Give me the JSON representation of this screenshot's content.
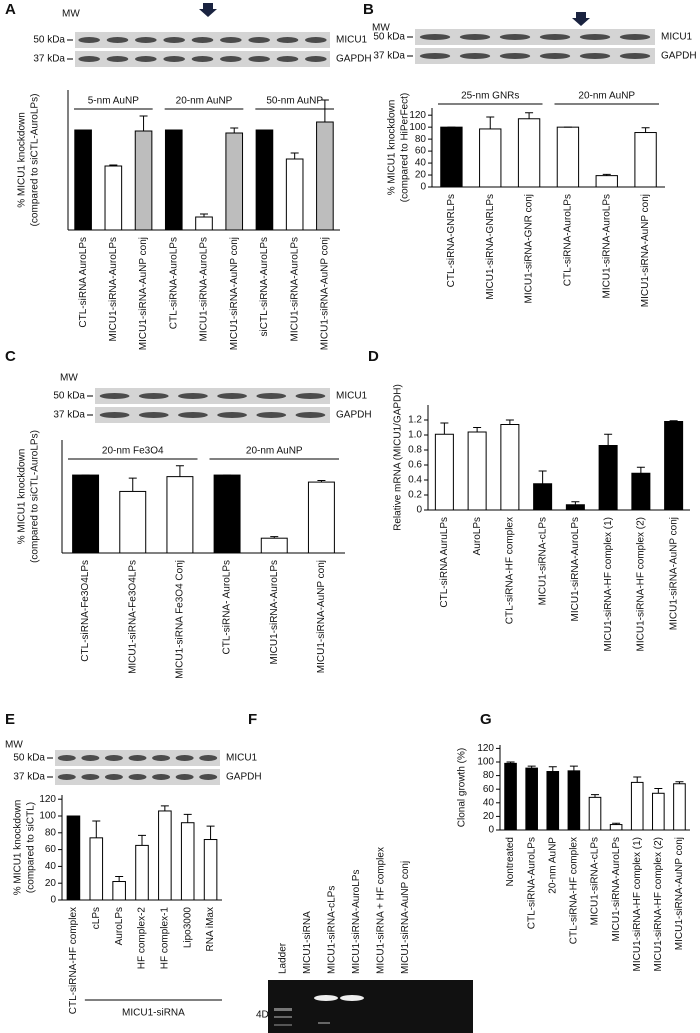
{
  "chart_data": [
    {
      "type": "bar",
      "label": "A",
      "blot": {
        "mw": "MW",
        "markers": [
          "50 kDa",
          "37 kDa"
        ],
        "bands": [
          "MICU1",
          "GAPDH"
        ]
      },
      "ylabel": [
        "% MICU1 knockdown",
        "(compared to siCTL-AuroLPs)"
      ],
      "groups": [
        "5-nm AuNP",
        "20-nm AuNP",
        "50-nm AuNP"
      ],
      "categories": [
        "CTL-siRNA AuroLPs",
        "MICU1-siRNA-AuroLPs",
        "MICU1-siRNA-AuNP conj",
        "CTL-siRNA-AuroLPs",
        "MICU1-siRNA-AuroLPs",
        "MICU1-siRNA-AuNP conj",
        "siCTL-siRNA-AuroLPs",
        "MICU1-siRNA-AuroLPs",
        "MICU1-siRNA-AuNP conj"
      ],
      "values": [
        100,
        64,
        99,
        100,
        13,
        97,
        100,
        71,
        108
      ],
      "errors": [
        0,
        1,
        15,
        0,
        3,
        5,
        0,
        6,
        22
      ],
      "colors": [
        "#000000",
        "#ffffff",
        "#bdbdbd",
        "#000000",
        "#ffffff",
        "#bdbdbd",
        "#000000",
        "#ffffff",
        "#bdbdbd"
      ],
      "ylim": [
        0,
        140
      ]
    },
    {
      "type": "bar",
      "label": "B",
      "blot": {
        "mw": "MW",
        "markers": [
          "50 kDa",
          "37 kDa"
        ],
        "bands": [
          "MICU1",
          "GAPDH"
        ]
      },
      "ylabel": [
        "% MICU1 knockdown",
        "(compared to HiPerFect)"
      ],
      "groups": [
        "25-nm GNRs",
        "20-nm AuNP"
      ],
      "categories": [
        "CTL-siRNA-GNRLPs",
        "MICU1-siRNA-GNRLPs",
        "MICU1-siRNA-GNR conj",
        "CTL-siRNA-AuroLPs",
        "MICU1-siRNA-AuroLPs",
        "MICU1-siRNA-AuNP conj"
      ],
      "values": [
        100,
        97,
        114,
        100,
        19,
        91
      ],
      "errors": [
        0,
        20,
        10,
        0,
        2,
        8
      ],
      "colors": [
        "#000000",
        "#ffffff",
        "#ffffff",
        "#ffffff",
        "#ffffff",
        "#ffffff"
      ],
      "ylim": [
        0,
        132
      ],
      "yticks": [
        0,
        20,
        40,
        60,
        80,
        100,
        120
      ]
    },
    {
      "type": "bar",
      "label": "C",
      "blot": {
        "mw": "MW",
        "markers": [
          "50 kDa",
          "37 kDa"
        ],
        "bands": [
          "MICU1",
          "GAPDH"
        ]
      },
      "ylabel": [
        "% MICU1 knockdown",
        "(compared to siCTL-AuroLPs)"
      ],
      "groups": [
        "20-nm Fe3O4",
        "20-nm AuNP"
      ],
      "categories": [
        "CTL-siRNA-Fe3O4LPs",
        "MICU1-siRNA-Fe3O4LPs",
        "MICU1-siRNA Fe3O4 Conj",
        "CTL-siRNA- AuroLPs",
        "MICU1-siRNA-AuroLPs",
        "MICU1-siRNA-AuNP conj"
      ],
      "values": [
        100,
        79,
        98,
        100,
        19,
        91
      ],
      "errors": [
        0,
        17,
        14,
        0,
        2,
        2
      ],
      "colors": [
        "#000000",
        "#ffffff",
        "#ffffff",
        "#000000",
        "#ffffff",
        "#ffffff"
      ],
      "ylim": [
        0,
        145
      ]
    },
    {
      "type": "bar",
      "label": "D",
      "ylabel": [
        "Relative mRNA (MICU1/GAPDH)"
      ],
      "categories": [
        "CTL-siRNA AuruLPs",
        "AuroLPs",
        "CTL-siRNA-HF complex",
        "MICU1-siRNA-cLPs",
        "MICU1-siRNA-AuroLPs",
        "MICU1-siRNA-HF complex (1)",
        "MICU1-siRNA-HF complex (2)",
        "MICU1-siRNA-AuNP conj"
      ],
      "values": [
        1.01,
        1.04,
        1.14,
        0.35,
        0.07,
        0.86,
        0.49,
        1.18
      ],
      "errors": [
        0.15,
        0.06,
        0.06,
        0.17,
        0.04,
        0.15,
        0.08,
        0.01
      ],
      "colors": [
        "#ffffff",
        "#ffffff",
        "#ffffff",
        "#000000",
        "#000000",
        "#000000",
        "#000000",
        "#000000"
      ],
      "ylim": [
        0,
        1.4
      ],
      "yticks": [
        0,
        0.2,
        0.4,
        0.6,
        0.8,
        {
          "value": 1,
          "label": "1.0"
        },
        1.2
      ]
    },
    {
      "type": "bar",
      "label": "E",
      "blot": {
        "mw": "MW",
        "markers": [
          "50 kDa",
          "37 kDa"
        ],
        "bands": [
          "MICU1",
          "GAPDH"
        ]
      },
      "ylabel": [
        "% MICU1 knockdown",
        "(compared to siCTL)"
      ],
      "group_label": "MICU1-siRNA",
      "categories": [
        "CTL-siRNA-HF complex",
        "cLPs",
        "AuroLPs",
        "HF complex-2",
        "HF complex-1",
        "Lipo3000",
        "RNA iMax"
      ],
      "values": [
        100,
        74,
        22,
        65,
        106,
        92,
        72
      ],
      "errors": [
        0,
        20,
        6,
        12,
        6,
        10,
        16
      ],
      "colors": [
        "#000000",
        "#ffffff",
        "#ffffff",
        "#ffffff",
        "#ffffff",
        "#ffffff",
        "#ffffff"
      ],
      "ylim": [
        0,
        125
      ],
      "yticks": [
        0,
        20,
        40,
        60,
        80,
        100,
        120
      ]
    },
    {
      "type": "gel",
      "label": "F",
      "marker": "4D",
      "lanes": [
        "Ladder",
        "MICU1-siRNA",
        "MICU1-siRNA-cLPs",
        "MICU1-siRNA-AuroLPs",
        "MICU1-siRNA + HF complex",
        "MICU1-siRNA-AuNP conj"
      ]
    },
    {
      "type": "bar",
      "label": "G",
      "ylabel": [
        "Clonal growth (%)"
      ],
      "categories": [
        "Nontreated",
        "CTL-siRNA-AuroLPs",
        "20-nm AuNP",
        "CTL-siRNA-HF complex",
        "MICU1-siRNA-cLPs",
        "MICU1-siRNA-AuroLPs",
        "MICU1-siRNA-HF complex (1)",
        "MICU1-siRNA-HF complex (2)",
        "MICU1-siRNA-AuNP conj"
      ],
      "values": [
        98,
        91,
        86,
        87,
        48,
        8,
        70,
        54,
        68
      ],
      "errors": [
        2,
        3,
        7,
        7,
        4,
        2,
        8,
        7,
        3
      ],
      "colors": [
        "#000000",
        "#000000",
        "#000000",
        "#000000",
        "#ffffff",
        "#ffffff",
        "#ffffff",
        "#ffffff",
        "#ffffff"
      ],
      "ylim": [
        0,
        125
      ],
      "yticks": [
        0,
        20,
        40,
        60,
        80,
        100,
        120
      ]
    }
  ]
}
